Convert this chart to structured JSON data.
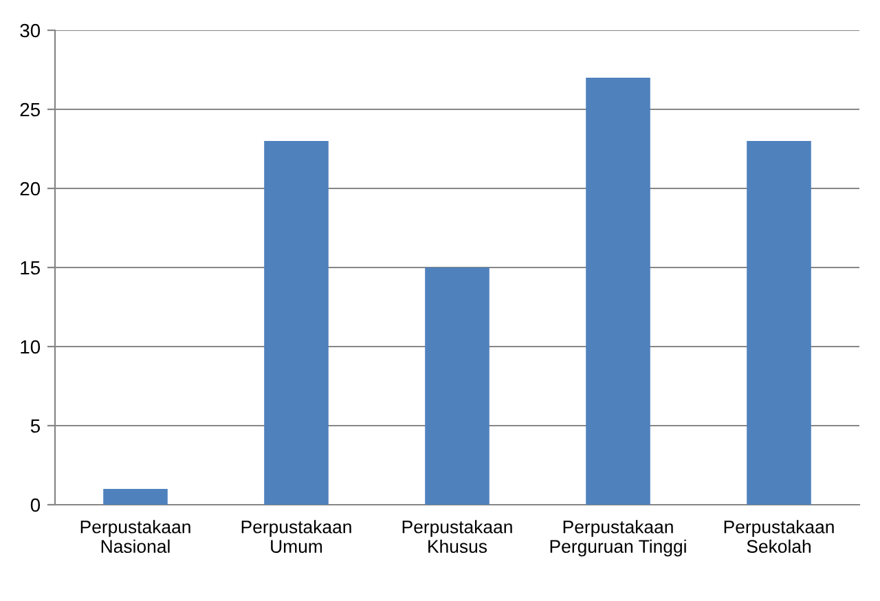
{
  "chart_data": {
    "type": "bar",
    "categories": [
      "Perpustakaan\nNasional",
      "Perpustakaan\nUmum",
      "Perpustakaan\nKhusus",
      "Perpustakaan\nPerguruan Tinggi",
      "Perpustakaan\nSekolah"
    ],
    "values": [
      1,
      23,
      15,
      27,
      23
    ],
    "color": "#4f81bd",
    "ylim": [
      0,
      30
    ],
    "yticks": [
      0,
      5,
      10,
      15,
      20,
      25,
      30
    ],
    "grid": "y",
    "legend": false
  }
}
